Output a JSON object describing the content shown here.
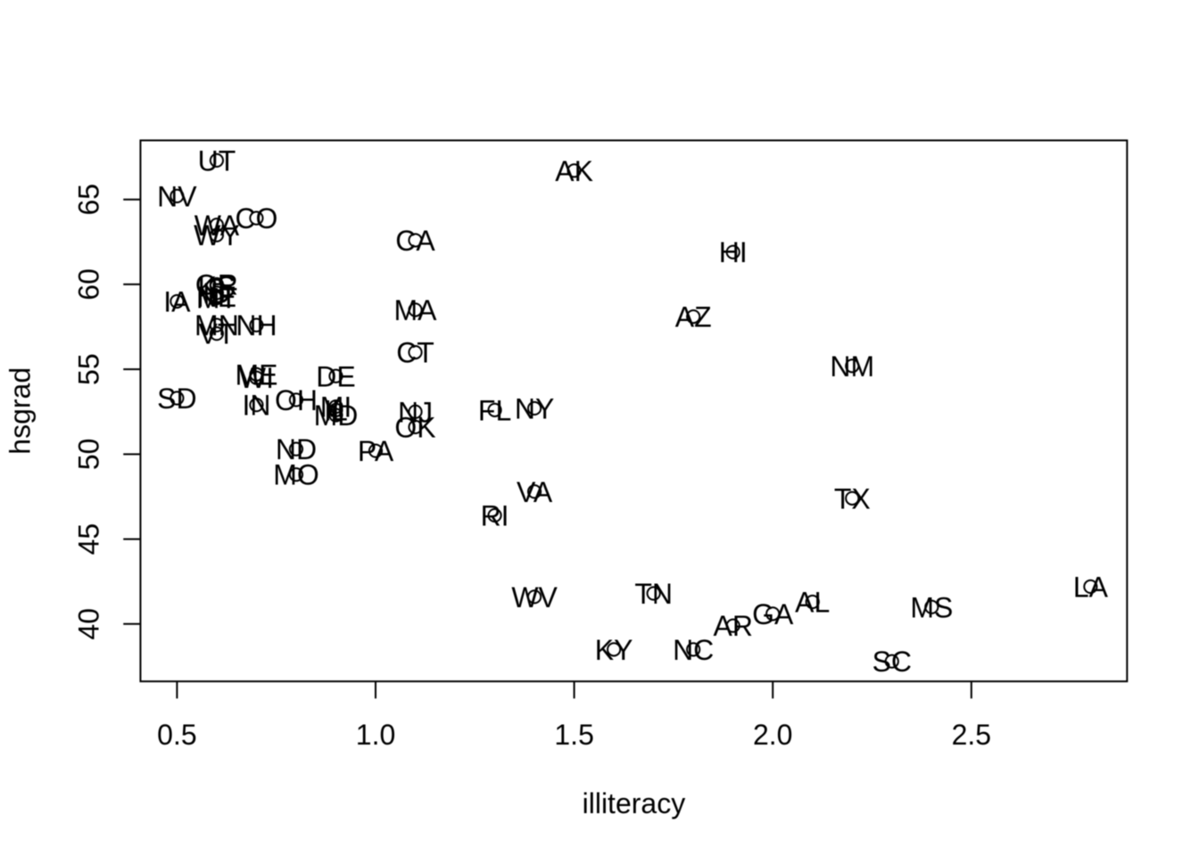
{
  "chart_data": {
    "type": "scatter",
    "title": "",
    "xlabel": "illiteracy",
    "ylabel": "hsgrad",
    "xlim": [
      0.408,
      2.892
    ],
    "ylim": [
      36.62,
      68.48
    ],
    "grid": false,
    "legend": false,
    "marker": "open-circle-with-state-abbreviation-text",
    "x_ticks": [
      {
        "value": 0.5,
        "label": "0.5"
      },
      {
        "value": 1.0,
        "label": "1.0"
      },
      {
        "value": 1.5,
        "label": "1.5"
      },
      {
        "value": 2.0,
        "label": "2.0"
      },
      {
        "value": 2.5,
        "label": "2.5"
      }
    ],
    "y_ticks": [
      {
        "value": 40,
        "label": "40"
      },
      {
        "value": 45,
        "label": "45"
      },
      {
        "value": 50,
        "label": "50"
      },
      {
        "value": 55,
        "label": "55"
      },
      {
        "value": 60,
        "label": "60"
      },
      {
        "value": 65,
        "label": "65"
      }
    ],
    "points": [
      {
        "label": "AL",
        "x": 2.1,
        "y": 41.3
      },
      {
        "label": "AK",
        "x": 1.5,
        "y": 66.7
      },
      {
        "label": "AZ",
        "x": 1.8,
        "y": 58.1
      },
      {
        "label": "AR",
        "x": 1.9,
        "y": 39.9
      },
      {
        "label": "CA",
        "x": 1.1,
        "y": 62.6
      },
      {
        "label": "CO",
        "x": 0.7,
        "y": 63.9
      },
      {
        "label": "CT",
        "x": 1.1,
        "y": 56.0
      },
      {
        "label": "DE",
        "x": 0.9,
        "y": 54.6
      },
      {
        "label": "FL",
        "x": 1.3,
        "y": 52.6
      },
      {
        "label": "GA",
        "x": 2.0,
        "y": 40.6
      },
      {
        "label": "HI",
        "x": 1.9,
        "y": 61.9
      },
      {
        "label": "ID",
        "x": 0.6,
        "y": 59.5
      },
      {
        "label": "IL",
        "x": 0.9,
        "y": 52.6
      },
      {
        "label": "IN",
        "x": 0.7,
        "y": 52.9
      },
      {
        "label": "IA",
        "x": 0.5,
        "y": 59.0
      },
      {
        "label": "KS",
        "x": 0.6,
        "y": 59.9
      },
      {
        "label": "KY",
        "x": 1.6,
        "y": 38.5
      },
      {
        "label": "LA",
        "x": 2.8,
        "y": 42.2
      },
      {
        "label": "ME",
        "x": 0.7,
        "y": 54.7
      },
      {
        "label": "MD",
        "x": 0.9,
        "y": 52.3
      },
      {
        "label": "MA",
        "x": 1.1,
        "y": 58.5
      },
      {
        "label": "MI",
        "x": 0.9,
        "y": 52.8
      },
      {
        "label": "MN",
        "x": 0.6,
        "y": 57.6
      },
      {
        "label": "MS",
        "x": 2.4,
        "y": 41.0
      },
      {
        "label": "MO",
        "x": 0.8,
        "y": 48.8
      },
      {
        "label": "MT",
        "x": 0.6,
        "y": 59.2
      },
      {
        "label": "NE",
        "x": 0.6,
        "y": 59.3
      },
      {
        "label": "NV",
        "x": 0.5,
        "y": 65.2
      },
      {
        "label": "NH",
        "x": 0.7,
        "y": 57.6
      },
      {
        "label": "NJ",
        "x": 1.1,
        "y": 52.5
      },
      {
        "label": "NM",
        "x": 2.2,
        "y": 55.2
      },
      {
        "label": "NY",
        "x": 1.4,
        "y": 52.7
      },
      {
        "label": "NC",
        "x": 1.8,
        "y": 38.5
      },
      {
        "label": "ND",
        "x": 0.8,
        "y": 50.3
      },
      {
        "label": "OH",
        "x": 0.8,
        "y": 53.2
      },
      {
        "label": "OK",
        "x": 1.1,
        "y": 51.6
      },
      {
        "label": "OR",
        "x": 0.6,
        "y": 60.0
      },
      {
        "label": "PA",
        "x": 1.0,
        "y": 50.2
      },
      {
        "label": "RI",
        "x": 1.3,
        "y": 46.4
      },
      {
        "label": "SC",
        "x": 2.3,
        "y": 37.8
      },
      {
        "label": "SD",
        "x": 0.5,
        "y": 53.3
      },
      {
        "label": "TN",
        "x": 1.7,
        "y": 41.8
      },
      {
        "label": "TX",
        "x": 2.2,
        "y": 47.4
      },
      {
        "label": "UT",
        "x": 0.6,
        "y": 67.3
      },
      {
        "label": "VT",
        "x": 0.6,
        "y": 57.1
      },
      {
        "label": "VA",
        "x": 1.4,
        "y": 47.8
      },
      {
        "label": "WA",
        "x": 0.6,
        "y": 63.5
      },
      {
        "label": "WV",
        "x": 1.4,
        "y": 41.6
      },
      {
        "label": "WI",
        "x": 0.7,
        "y": 54.5
      },
      {
        "label": "WY",
        "x": 0.6,
        "y": 62.9
      }
    ]
  },
  "colors": {
    "foreground": "#000000",
    "background": "#ffffff"
  }
}
